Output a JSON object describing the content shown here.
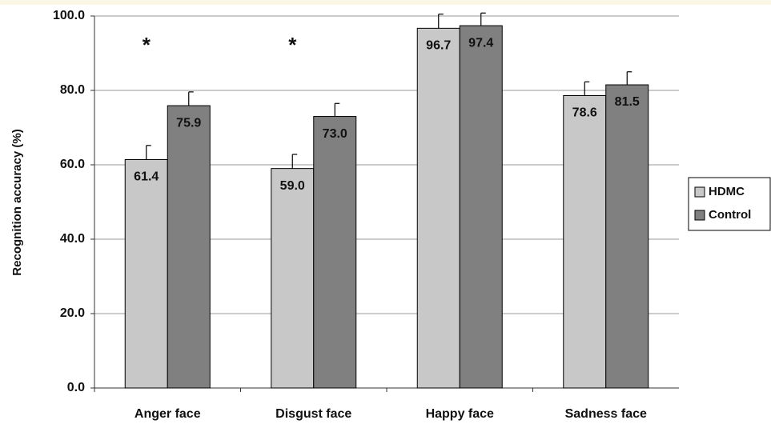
{
  "chart_data": {
    "type": "bar",
    "categories": [
      "Anger face",
      "Disgust face",
      "Happy face",
      "Sadness face"
    ],
    "series": [
      {
        "name": "HDMC",
        "color": "#c8c8c8",
        "values": [
          61.4,
          59.0,
          96.7,
          78.6
        ],
        "value_labels": [
          "61.4",
          "59.0",
          "96.7",
          "78.6"
        ],
        "errors": [
          3.8,
          3.8,
          3.8,
          3.7
        ]
      },
      {
        "name": "Control",
        "color": "#808080",
        "values": [
          75.9,
          73.0,
          97.4,
          81.5
        ],
        "value_labels": [
          "75.9",
          "73.0",
          "97.4",
          "81.5"
        ],
        "errors": [
          3.7,
          3.5,
          3.4,
          3.5
        ]
      }
    ],
    "ylabel": "Recognition accuracy (%)",
    "ylim": [
      0,
      100
    ],
    "yticks": [
      {
        "value": 0,
        "label": "0.0"
      },
      {
        "value": 20,
        "label": "20.0"
      },
      {
        "value": 40,
        "label": "40.0"
      },
      {
        "value": 60,
        "label": "60.0"
      },
      {
        "value": 80,
        "label": "80.0"
      },
      {
        "value": 100,
        "label": "100.0"
      }
    ],
    "grid": true,
    "legend": "right",
    "annotations": [
      {
        "text": "*",
        "category": "Anger face"
      },
      {
        "text": "*",
        "category": "Disgust face"
      }
    ]
  }
}
